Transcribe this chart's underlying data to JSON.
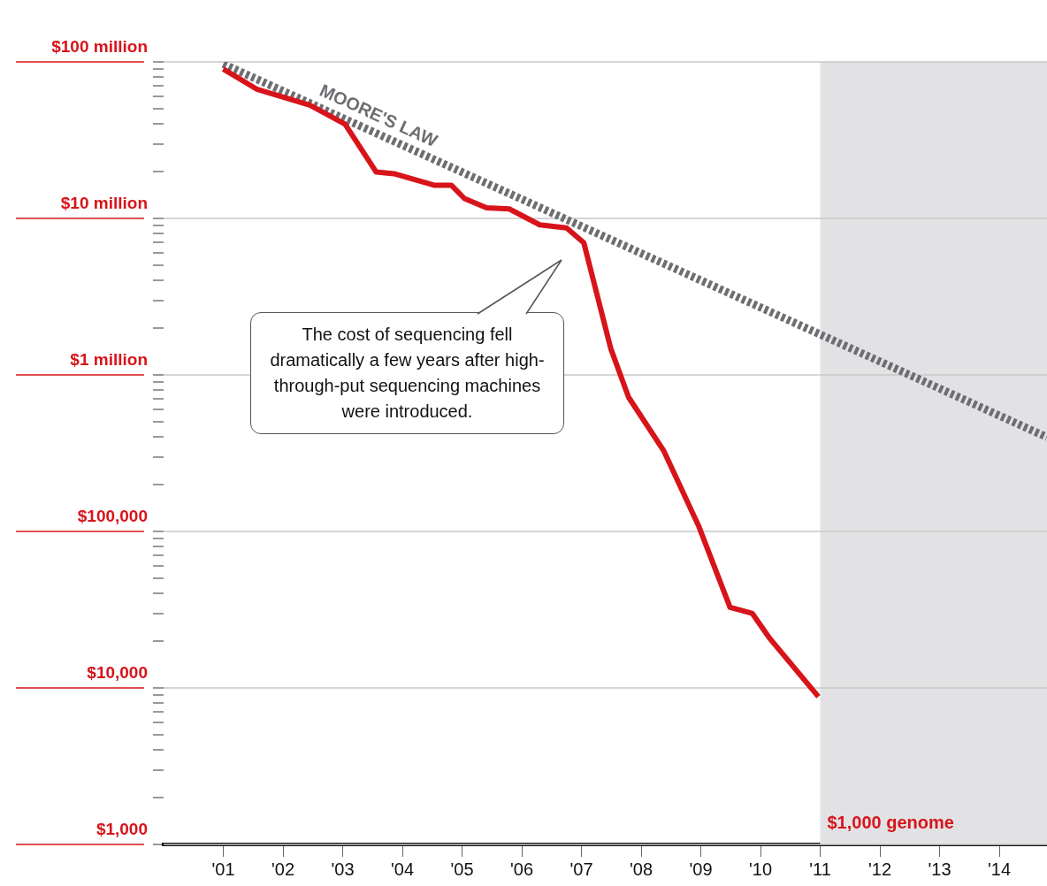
{
  "chart_data": {
    "type": "line",
    "log": "y",
    "grid": "y",
    "legend": false,
    "x": [
      2001.0,
      2001.56,
      2002.45,
      2003.04,
      2003.56,
      2003.86,
      2004.53,
      2004.82,
      2005.04,
      2005.41,
      2005.79,
      2006.3,
      2006.75,
      2007.04,
      2007.49,
      2007.79,
      2008.38,
      2008.97,
      2009.49,
      2009.86,
      2010.16,
      2010.97
    ],
    "series": [
      {
        "color": "#d7141a",
        "line_style": "solid",
        "values": [
          90000000,
          67000000,
          53000000,
          40000000,
          19800000,
          19300000,
          16300000,
          16300000,
          13400000,
          11700000,
          11500000,
          9100000,
          8700000,
          7000000,
          1480000,
          720000,
          327000,
          107000,
          32700,
          30000,
          20600,
          8800
        ]
      },
      {
        "name": "MOORE'S LAW",
        "type": "line",
        "color": "#6d6e71",
        "line_style": "dotted",
        "x": [
          2001.0,
          2014.8
        ],
        "values": [
          97000000,
          400000
        ]
      }
    ],
    "xlim": [
      2000,
      2014.8
    ],
    "xticks": [
      {
        "value": 2001,
        "label": "'01"
      },
      {
        "value": 2002,
        "label": "'02"
      },
      {
        "value": 2003,
        "label": "'03"
      },
      {
        "value": 2004,
        "label": "'04"
      },
      {
        "value": 2005,
        "label": "'05"
      },
      {
        "value": 2006,
        "label": "'06"
      },
      {
        "value": 2007,
        "label": "'07"
      },
      {
        "value": 2008,
        "label": "'08"
      },
      {
        "value": 2009,
        "label": "'09"
      },
      {
        "value": 2010,
        "label": "'10"
      },
      {
        "value": 2011,
        "label": "'11"
      },
      {
        "value": 2012,
        "label": "'12"
      },
      {
        "value": 2013,
        "label": "'13"
      },
      {
        "value": 2014,
        "label": "'14"
      }
    ],
    "ylim": [
      1000,
      100000000
    ],
    "yticks": [
      {
        "value": 1000,
        "label": "$1,000"
      },
      {
        "value": 2000,
        "label": null
      },
      {
        "value": 3000,
        "label": null
      },
      {
        "value": 4000,
        "label": null
      },
      {
        "value": 5000,
        "label": null
      },
      {
        "value": 6000,
        "label": null
      },
      {
        "value": 7000,
        "label": null
      },
      {
        "value": 8000,
        "label": null
      },
      {
        "value": 9000,
        "label": null
      },
      {
        "value": 10000,
        "label": "$10,000"
      },
      {
        "value": 20000,
        "label": null
      },
      {
        "value": 30000,
        "label": null
      },
      {
        "value": 40000,
        "label": null
      },
      {
        "value": 50000,
        "label": null
      },
      {
        "value": 60000,
        "label": null
      },
      {
        "value": 70000,
        "label": null
      },
      {
        "value": 80000,
        "label": null
      },
      {
        "value": 90000,
        "label": null
      },
      {
        "value": 100000,
        "label": "$100,000"
      },
      {
        "value": 200000,
        "label": null
      },
      {
        "value": 300000,
        "label": null
      },
      {
        "value": 400000,
        "label": null
      },
      {
        "value": 500000,
        "label": null
      },
      {
        "value": 600000,
        "label": null
      },
      {
        "value": 700000,
        "label": null
      },
      {
        "value": 800000,
        "label": null
      },
      {
        "value": 900000,
        "label": null
      },
      {
        "value": 1000000,
        "label": "$1 million"
      },
      {
        "value": 2000000,
        "label": null
      },
      {
        "value": 3000000,
        "label": null
      },
      {
        "value": 4000000,
        "label": null
      },
      {
        "value": 5000000,
        "label": null
      },
      {
        "value": 6000000,
        "label": null
      },
      {
        "value": 7000000,
        "label": null
      },
      {
        "value": 8000000,
        "label": null
      },
      {
        "value": 9000000,
        "label": null
      },
      {
        "value": 10000000,
        "label": "$10 million"
      },
      {
        "value": 20000000,
        "label": null
      },
      {
        "value": 30000000,
        "label": null
      },
      {
        "value": 40000000,
        "label": null
      },
      {
        "value": 50000000,
        "label": null
      },
      {
        "value": 60000000,
        "label": null
      },
      {
        "value": 70000000,
        "label": null
      },
      {
        "value": 80000000,
        "label": null
      },
      {
        "value": 90000000,
        "label": null
      },
      {
        "value": 100000000,
        "label": "$100 million"
      }
    ],
    "bands": [
      {
        "axis": "x",
        "from": 2011,
        "to": 2014.8,
        "label": "$1,000 genome",
        "color": "#e2e2e5"
      }
    ],
    "annotations": [
      "The cost of sequencing fell dramatically a few years after high-through-put sequencing machines were introduced."
    ]
  }
}
